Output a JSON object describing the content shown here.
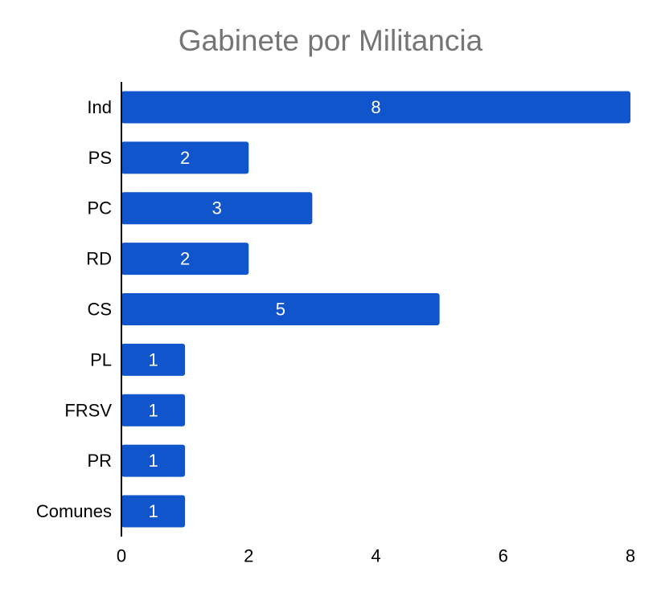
{
  "chart_data": {
    "type": "bar",
    "orientation": "horizontal",
    "title": "Gabinete por Militancia",
    "categories": [
      "Ind",
      "PS",
      "PC",
      "RD",
      "CS",
      "PL",
      "FRSV",
      "PR",
      "Comunes"
    ],
    "values": [
      8,
      2,
      3,
      2,
      5,
      1,
      1,
      1,
      1
    ],
    "xlim": [
      0,
      8
    ],
    "xticks": [
      "0",
      "2",
      "4",
      "6",
      "8"
    ],
    "grid": false,
    "legend": "none",
    "data_labels": true,
    "bar_color": "#1155CC",
    "label_color": "#FFFFFF"
  }
}
